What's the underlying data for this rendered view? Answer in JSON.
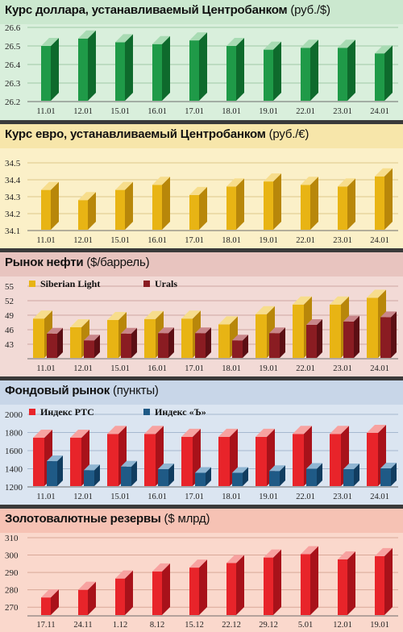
{
  "chart_data": [
    {
      "type": "bar",
      "title": "Курс доллара, устанавливаемый Центробанком",
      "unit": "(руб./$)",
      "categories": [
        "11.01",
        "12.01",
        "15.01",
        "16.01",
        "17.01",
        "18.01",
        "19.01",
        "22.01",
        "23.01",
        "24.01"
      ],
      "series": [
        {
          "values": [
            26.5,
            26.54,
            26.52,
            26.51,
            26.53,
            26.5,
            26.48,
            26.49,
            26.49,
            26.46
          ]
        }
      ],
      "ylim": [
        26.2,
        26.6
      ],
      "yticks": [
        "26.6",
        "26.5",
        "26.4",
        "26.3",
        "26.2"
      ],
      "colors": {
        "bar": "#1f9a48",
        "bar_dark": "#0e6a2c",
        "bar_light": "#a8dbb3",
        "head_bg": "#cbe8cf",
        "plot_bg": "#d9efdc",
        "grid": "#9ec9a6"
      }
    },
    {
      "type": "bar",
      "title": "Курс евро, устанавливаемый Центробанком",
      "unit": "(руб./€)",
      "categories": [
        "11.01",
        "12.01",
        "15.01",
        "16.01",
        "17.01",
        "18.01",
        "19.01",
        "22.01",
        "23.01",
        "24.01"
      ],
      "series": [
        {
          "values": [
            34.34,
            34.28,
            34.34,
            34.37,
            34.31,
            34.36,
            34.39,
            34.37,
            34.36,
            34.42
          ]
        }
      ],
      "ylim": [
        34.1,
        34.5
      ],
      "yticks": [
        "34.5",
        "34.4",
        "34.3",
        "34.2",
        "34.1"
      ],
      "colors": {
        "bar": "#e8b414",
        "bar_dark": "#b8870a",
        "bar_light": "#f7dd8c",
        "head_bg": "#f7e6aa",
        "plot_bg": "#fbf0c8",
        "grid": "#dcc98a"
      }
    },
    {
      "type": "bar",
      "title": "Рынок нефти",
      "unit": "($/баррель)",
      "categories": [
        "11.01",
        "12.01",
        "15.01",
        "16.01",
        "17.01",
        "18.01",
        "19.01",
        "22.01",
        "23.01",
        "24.01"
      ],
      "series": [
        {
          "name": "Siberian Light",
          "values": [
            48.3,
            46.5,
            48.0,
            48.2,
            48.3,
            47.1,
            49.2,
            51.2,
            51.2,
            52.6
          ]
        },
        {
          "name": "Urals",
          "values": [
            45.2,
            43.8,
            45.2,
            45.3,
            45.3,
            43.8,
            45.3,
            47.0,
            47.7,
            48.6
          ]
        }
      ],
      "ylim": [
        40,
        55
      ],
      "yticks": [
        "55",
        "52",
        "49",
        "46",
        "43"
      ],
      "colors": {
        "s1": "#e8b414",
        "s1_dark": "#b8870a",
        "s1_light": "#f7dd8c",
        "s2": "#8a1c22",
        "s2_dark": "#5c0f14",
        "s2_light": "#c9868a",
        "head_bg": "#e8c4bf",
        "plot_bg": "#f2dad6",
        "grid": "#cda7a2"
      }
    },
    {
      "type": "bar",
      "title": "Фондовый рынок",
      "unit": "(пункты)",
      "categories": [
        "11.01",
        "12.01",
        "15.01",
        "16.01",
        "17.01",
        "18.01",
        "19.01",
        "22.01",
        "23.01",
        "24.01"
      ],
      "series": [
        {
          "name": "Индекс РТС",
          "values": [
            1742,
            1742,
            1784,
            1784,
            1752,
            1752,
            1752,
            1784,
            1784,
            1796
          ]
        },
        {
          "name": "Индекс «Ъ»",
          "values": [
            1484,
            1385,
            1424,
            1396,
            1356,
            1356,
            1376,
            1400,
            1396,
            1405
          ]
        }
      ],
      "ylim": [
        1200,
        2000
      ],
      "yticks": [
        "2000",
        "1800",
        "1600",
        "1400",
        "1200"
      ],
      "colors": {
        "s1": "#e8242a",
        "s1_dark": "#a8121a",
        "s1_light": "#f7a2a0",
        "s2": "#1f5a86",
        "s2_dark": "#113d60",
        "s2_light": "#8fb5d2",
        "head_bg": "#c8d6e8",
        "plot_bg": "#dbe5f1",
        "grid": "#a6b8cf"
      }
    },
    {
      "type": "bar",
      "title": "Золотовалютные резервы",
      "unit": "($ млрд)",
      "categories": [
        "17.11",
        "24.11",
        "1.12",
        "8.12",
        "15.12",
        "22.12",
        "29.12",
        "5.01",
        "12.01",
        "19.01"
      ],
      "series": [
        {
          "values": [
            275.6,
            280.0,
            286.5,
            290.6,
            292.8,
            295.4,
            298.6,
            300.5,
            297.5,
            299.4
          ]
        }
      ],
      "ylim": [
        265,
        310
      ],
      "yticks": [
        "310",
        "300",
        "290",
        "280",
        "270"
      ],
      "colors": {
        "bar": "#e8242a",
        "bar_dark": "#a8121a",
        "bar_light": "#f7a2a0",
        "head_bg": "#f6c2b4",
        "plot_bg": "#fad8cc",
        "grid": "#d8a898"
      }
    }
  ]
}
